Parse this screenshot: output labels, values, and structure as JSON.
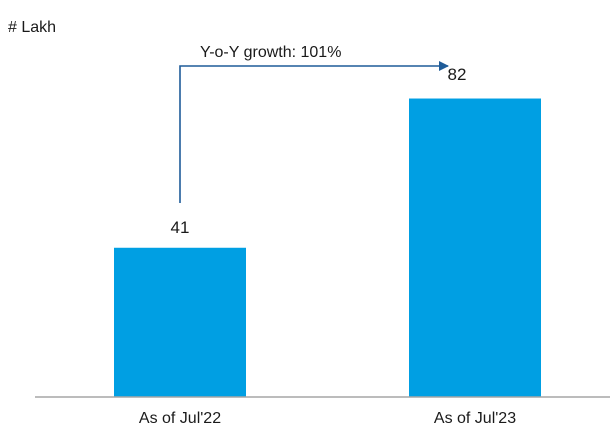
{
  "chart_data": {
    "type": "bar",
    "unit_label": "# Lakh",
    "categories": [
      "As of Jul'22",
      "As of Jul'23"
    ],
    "values": [
      41,
      82
    ],
    "data_labels": [
      "41",
      "82"
    ],
    "ylim": [
      0,
      100
    ],
    "grid": false,
    "annotation": "Y-o-Y growth: 101%",
    "colors": {
      "bar": "#009FE3",
      "arrow": "#1F5C99",
      "axis": "#A6A6A6",
      "text": "#1a1a1a"
    }
  }
}
